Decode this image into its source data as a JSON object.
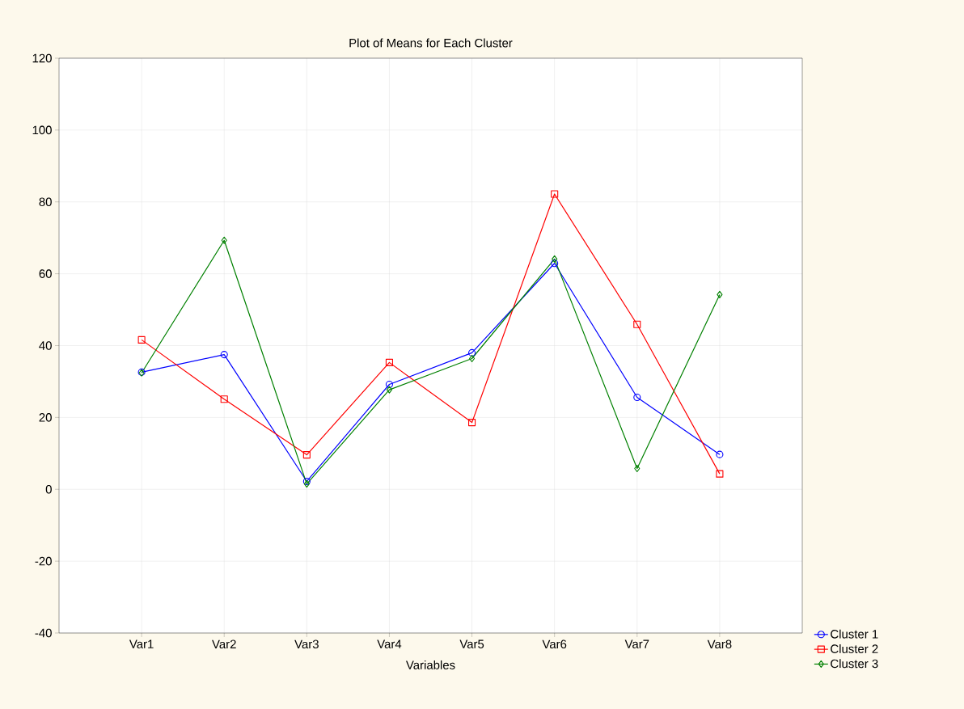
{
  "chart_data": {
    "type": "line",
    "title": "Plot of Means for Each Cluster",
    "xlabel": "Variables",
    "categories": [
      "Var1",
      "Var2",
      "Var3",
      "Var4",
      "Var5",
      "Var6",
      "Var7",
      "Var8"
    ],
    "series": [
      {
        "name": "Cluster 1",
        "color": "#0000ff",
        "marker": "circle",
        "values": [
          32.6,
          37.5,
          2.2,
          29.2,
          38,
          62.9,
          25.6,
          9.7
        ]
      },
      {
        "name": "Cluster 2",
        "color": "#ff0000",
        "marker": "square",
        "values": [
          41.6,
          25.1,
          9.6,
          35.3,
          18.6,
          82.2,
          45.9,
          4.3
        ]
      },
      {
        "name": "Cluster 3",
        "color": "#008000",
        "marker": "diamond",
        "values": [
          32.4,
          69.3,
          1.5,
          27.7,
          36.4,
          64.1,
          5.8,
          54.2
        ]
      }
    ],
    "ylim": [
      -40,
      120
    ],
    "yticks": [
      -40,
      -20,
      0,
      20,
      40,
      60,
      80,
      100,
      120
    ],
    "grid": true,
    "legend": "bottom right",
    "line_style": "solid"
  }
}
